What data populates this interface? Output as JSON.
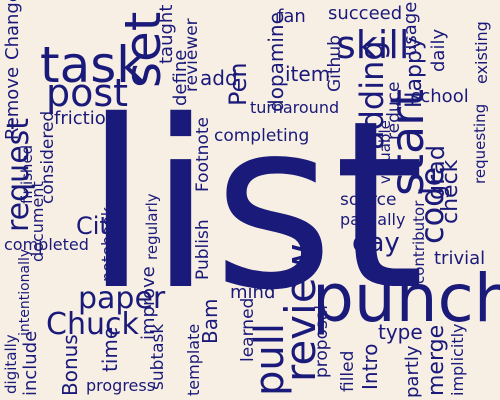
{
  "colors": {
    "background": "#f8efe4",
    "text": "#1a1a7a"
  },
  "words": {
    "list": "list",
    "punch": "punch",
    "task": "task",
    "set": "set",
    "post": "post",
    "request": "request",
    "start": "start",
    "adding": "adding",
    "skill": "skill",
    "review": "review",
    "pull": "pull",
    "paper": "paper",
    "chuck": "Chuck",
    "cite": "Cite",
    "day": "day",
    "code": "code",
    "change": "Change",
    "remove": "Remove",
    "taught": "taught",
    "reviewer": "reviewer",
    "fan": "fan",
    "dopamine": "dopamine",
    "define": "define",
    "add": "add",
    "pen": "Pen",
    "item": "item",
    "github": "Github",
    "succeed": "succeed",
    "usage": "usage",
    "happy": "Happy",
    "daily": "daily",
    "existing": "existing",
    "school": "school",
    "requesting": "requesting",
    "reduce": "reduce",
    "turnaround": "turnaround",
    "friction": "friction",
    "finished": "finished",
    "considered": "considered",
    "footnote": "Footnote",
    "completing": "completing",
    "valuable": "valuable",
    "grad": "grad",
    "check": "check",
    "document": "document",
    "notebook": "notebook",
    "regularly": "regularly",
    "publish": "Publish",
    "source": "source",
    "partially": "partially",
    "contributor": "contributor",
    "trivial": "trivial",
    "completed": "completed",
    "intentionally": "intentionally",
    "improve": "improve",
    "bam": "Bam",
    "mind": "mind",
    "learned": "learned",
    "proposal": "proposal",
    "filled": "filled",
    "type": "type",
    "merge": "merge",
    "partly": "partly",
    "implicitly": "implicitly",
    "intro": "Intro",
    "digitally": "digitally",
    "include": "include",
    "bonus": "Bonus",
    "time": "time",
    "subtask": "subtask",
    "template": "template",
    "progress": "progress"
  }
}
